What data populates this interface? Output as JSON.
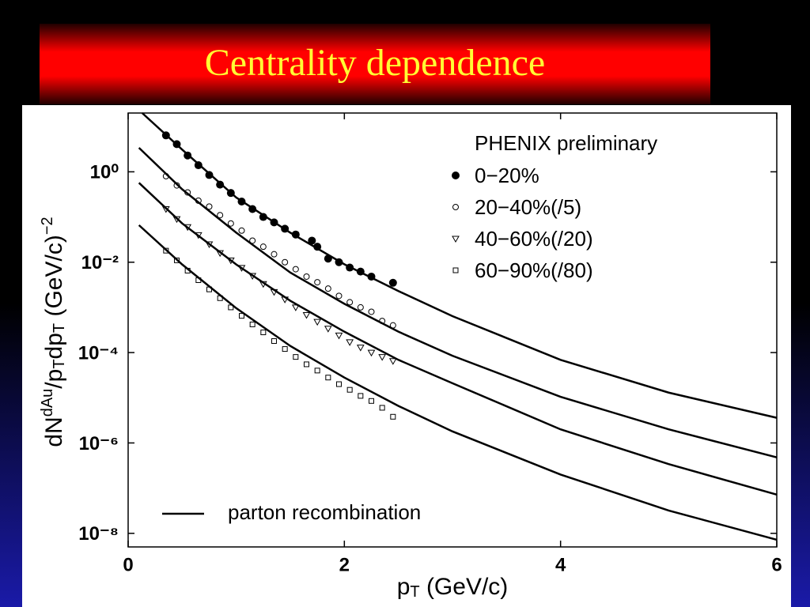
{
  "title": "Centrality dependence",
  "chart_data": {
    "type": "scatter",
    "log_y": true,
    "x_label_parts": [
      {
        "text": "p"
      },
      {
        "text": "T",
        "sub": true
      },
      {
        "text": " (GeV/c)"
      }
    ],
    "y_label_parts": [
      {
        "text": "dN"
      },
      {
        "text": "dAu",
        "sup": true
      },
      {
        "text": "/p"
      },
      {
        "text": "T",
        "sub": true
      },
      {
        "text": "dp"
      },
      {
        "text": "T",
        "sub": true
      },
      {
        "text": " (GeV/c)"
      },
      {
        "text": "−2",
        "sup": true
      }
    ],
    "xlim": [
      0,
      6
    ],
    "xticks": [
      0,
      2,
      4,
      6
    ],
    "ylim": [
      5e-09,
      20
    ],
    "yticks": [
      {
        "value": 1,
        "label": "10⁰"
      },
      {
        "value": 0.01,
        "label": "10⁻²"
      },
      {
        "value": 0.0001,
        "label": "10⁻⁴"
      },
      {
        "value": 1e-06,
        "label": "10⁻⁶"
      },
      {
        "value": 1e-08,
        "label": "10⁻⁸"
      }
    ],
    "legend_title": "PHENIX preliminary",
    "legend": "upper right",
    "series": [
      {
        "name": "0−20%",
        "marker": "filled-circle",
        "color": "#000",
        "x": [
          0.35,
          0.45,
          0.55,
          0.65,
          0.75,
          0.85,
          0.95,
          1.05,
          1.15,
          1.25,
          1.35,
          1.45,
          1.55,
          1.7,
          1.75,
          1.85,
          1.95,
          2.05,
          2.15,
          2.25,
          2.45
        ],
        "values": [
          6.4,
          4.1,
          2.3,
          1.4,
          0.85,
          0.52,
          0.34,
          0.22,
          0.15,
          0.1,
          0.076,
          0.055,
          0.041,
          0.03,
          0.022,
          0.012,
          0.01,
          0.0076,
          0.0062,
          0.0048,
          0.0035
        ]
      },
      {
        "name": "20−40%(/5)",
        "marker": "open-circle",
        "color": "#000",
        "x": [
          0.35,
          0.45,
          0.55,
          0.65,
          0.75,
          0.85,
          0.95,
          1.05,
          1.15,
          1.25,
          1.35,
          1.45,
          1.55,
          1.65,
          1.75,
          1.85,
          1.95,
          2.05,
          2.15,
          2.25,
          2.35,
          2.45
        ],
        "values": [
          0.8,
          0.5,
          0.35,
          0.23,
          0.17,
          0.11,
          0.072,
          0.05,
          0.03,
          0.022,
          0.015,
          0.01,
          0.007,
          0.0048,
          0.0036,
          0.0026,
          0.0018,
          0.0013,
          0.001,
          0.0008,
          0.0005,
          0.0004
        ]
      },
      {
        "name": "40−60%(/20)",
        "marker": "open-triangle-down",
        "color": "#000",
        "x": [
          0.35,
          0.45,
          0.55,
          0.65,
          0.75,
          0.85,
          0.95,
          1.05,
          1.15,
          1.25,
          1.35,
          1.45,
          1.55,
          1.65,
          1.75,
          1.85,
          1.95,
          2.05,
          2.15,
          2.25,
          2.35,
          2.45
        ],
        "values": [
          0.15,
          0.09,
          0.06,
          0.04,
          0.025,
          0.016,
          0.011,
          0.0075,
          0.005,
          0.0033,
          0.0022,
          0.0015,
          0.001,
          0.00068,
          0.00048,
          0.00034,
          0.00024,
          0.00017,
          0.00013,
          0.0001,
          8e-05,
          6.5e-05
        ]
      },
      {
        "name": "60−90%(/80)",
        "marker": "open-square",
        "color": "#000",
        "x": [
          0.35,
          0.45,
          0.55,
          0.65,
          0.75,
          0.85,
          0.95,
          1.05,
          1.15,
          1.25,
          1.35,
          1.45,
          1.55,
          1.65,
          1.75,
          1.85,
          1.95,
          2.05,
          2.15,
          2.25,
          2.35,
          2.45
        ],
        "values": [
          0.018,
          0.011,
          0.0065,
          0.004,
          0.0025,
          0.0016,
          0.001,
          0.00065,
          0.00042,
          0.00028,
          0.00018,
          0.00012,
          8e-05,
          5.5e-05,
          4e-05,
          2.8e-05,
          2e-05,
          1.5e-05,
          1.1e-05,
          8.5e-06,
          6e-06,
          3.8e-06
        ]
      }
    ],
    "curves": {
      "name": "parton recombination",
      "color": "#000",
      "lines": [
        {
          "x": [
            0.13,
            0.5,
            1,
            1.5,
            2,
            2.5,
            3,
            4,
            5,
            6
          ],
          "values": [
            20,
            3.1,
            0.27,
            0.045,
            0.009,
            0.0023,
            0.00064,
            6.9e-05,
            1.3e-05,
            3.6e-06
          ]
        },
        {
          "x": [
            0.1,
            0.5,
            1,
            1.5,
            2,
            2.5,
            3,
            4,
            5,
            6
          ],
          "values": [
            3.4,
            0.41,
            0.045,
            0.0059,
            0.0012,
            0.00029,
            8.5e-05,
            1.05e-05,
            2e-06,
            4.8e-07
          ]
        },
        {
          "x": [
            0.1,
            0.5,
            1,
            1.5,
            2,
            2.5,
            3,
            4,
            5,
            6
          ],
          "values": [
            0.57,
            0.072,
            0.0089,
            0.0014,
            0.00029,
            6.9e-05,
            2.1e-05,
            2e-06,
            3.4e-07,
            7.2e-08
          ]
        },
        {
          "x": [
            0.1,
            0.5,
            1,
            1.5,
            2,
            2.5,
            3,
            4,
            5,
            6
          ],
          "values": [
            0.066,
            0.0089,
            0.00096,
            0.00014,
            2.8e-05,
            6.6e-06,
            1.8e-06,
            2e-07,
            3.2e-08,
            7.2e-09
          ]
        }
      ]
    }
  }
}
